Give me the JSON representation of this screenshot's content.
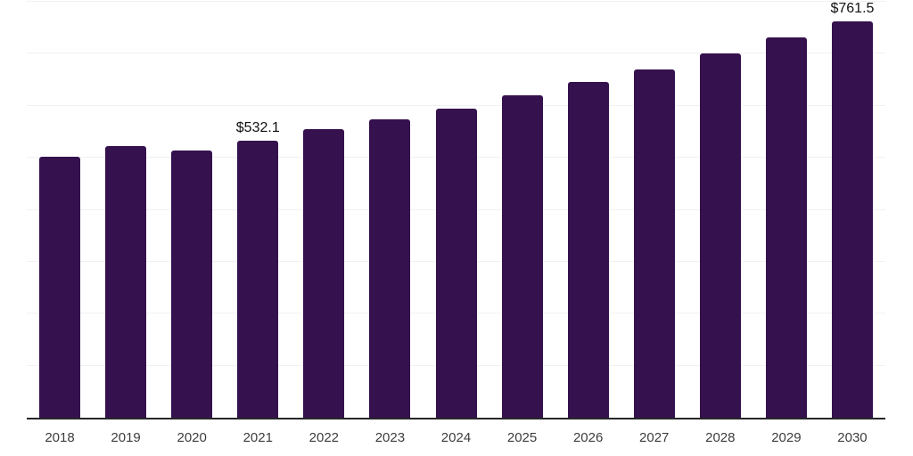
{
  "chart_data": {
    "type": "bar",
    "title": "",
    "xlabel": "",
    "ylabel": "",
    "categories": [
      "2018",
      "2019",
      "2020",
      "2021",
      "2022",
      "2023",
      "2024",
      "2025",
      "2026",
      "2027",
      "2028",
      "2029",
      "2030"
    ],
    "values": [
      502,
      523,
      514,
      532.1,
      555,
      574,
      594,
      620,
      646,
      670,
      700,
      731,
      761.5
    ],
    "point_labels": [
      "",
      "",
      "",
      "$532.1",
      "",
      "",
      "",
      "",
      "",
      "",
      "",
      "",
      "$761.5"
    ],
    "ylim": [
      0,
      800
    ],
    "gridline_step": 100,
    "grid": true,
    "legend": "none",
    "y_axis_labels_visible": false,
    "colors": {
      "bar": "#35114e",
      "axis_line": "#262626",
      "gridline": "#f1f1f1",
      "tick_label": "#3d3d3d",
      "value_label": "#111111",
      "background": "#ffffff"
    }
  }
}
